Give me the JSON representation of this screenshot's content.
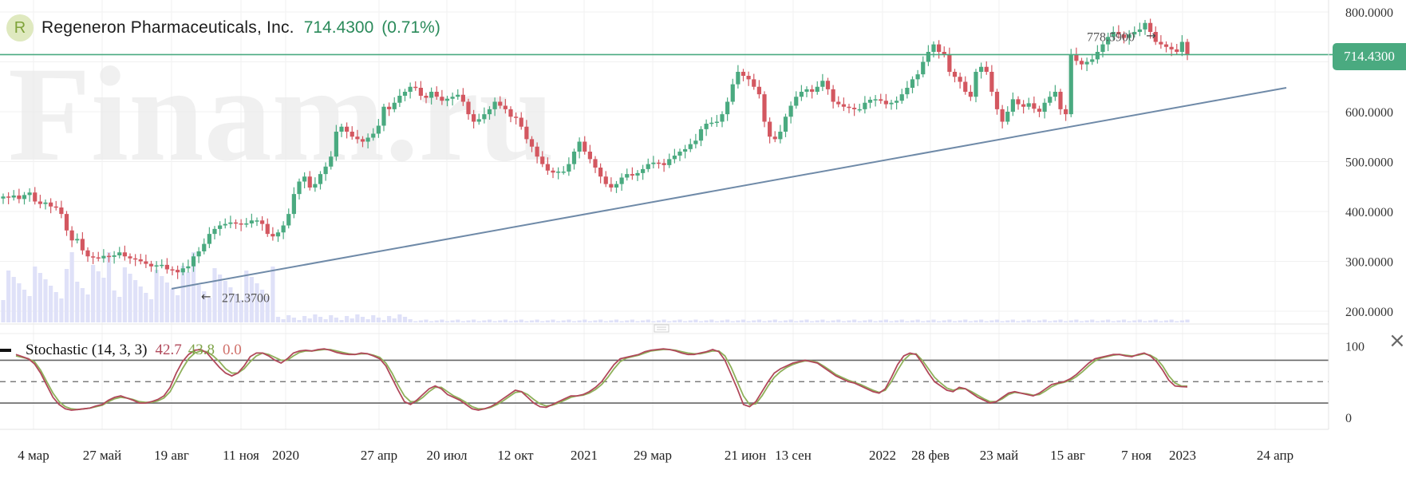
{
  "header": {
    "logo_letter": "R",
    "company": "Regeneron Pharmaceuticals, Inc.",
    "price": "714.4300",
    "change": "(0.71%)"
  },
  "watermark": "Finam.ru",
  "price_tag": "714.4300",
  "stochastic": {
    "name": "Stochastic (14, 3, 3)",
    "k": "42.7",
    "d": "43.8",
    "extra": "0.0"
  },
  "close_glyph": "×",
  "colors": {
    "up": "#4aaa80",
    "down": "#d35760",
    "trendline": "#6f8aa8",
    "price_line": "#4aaa80",
    "volume": "#dfe1f8",
    "stoch_k": "#b0485a",
    "stoch_d": "#8eb05a"
  },
  "chart_data": {
    "type": "candlestick",
    "price_axis": {
      "ticks": [
        "800.0000",
        "700.0000",
        "600.0000",
        "500.0000",
        "400.0000",
        "300.0000",
        "200.0000"
      ],
      "tick_values": [
        800,
        700,
        600,
        500,
        400,
        300,
        200
      ]
    },
    "stoch_axis": {
      "ticks": [
        "100",
        "0"
      ],
      "tick_values": [
        100,
        0
      ],
      "levels": [
        80,
        50,
        20
      ]
    },
    "x_labels": [
      "4 мар",
      "27 май",
      "19 авг",
      "11 ноя",
      "2020",
      "27 апр",
      "20 июл",
      "12 окт",
      "2021",
      "29 мар",
      "21 июн",
      "13 сен",
      "2022",
      "28 фев",
      "23 май",
      "15 авг",
      "7 ноя",
      "2023",
      "24 апр"
    ],
    "current_price": 714.43,
    "annotations": [
      {
        "text": "778.5900",
        "value": 778.59,
        "arrow": "→"
      },
      {
        "text": "271.3700",
        "value": 271.37,
        "arrow": "←"
      }
    ],
    "trendline": {
      "from": {
        "label": "19 авг",
        "value": 245
      },
      "to": {
        "label": "24 апр",
        "value": 648
      }
    },
    "closes": [
      430,
      428,
      432,
      425,
      433,
      438,
      420,
      415,
      418,
      410,
      408,
      395,
      362,
      342,
      345,
      322,
      310,
      308,
      306,
      311,
      309,
      312,
      318,
      310,
      306,
      304,
      300,
      295,
      290,
      292,
      293,
      284,
      283,
      278,
      286,
      290,
      310,
      320,
      335,
      355,
      365,
      372,
      375,
      378,
      376,
      374,
      376,
      382,
      382,
      375,
      355,
      350,
      358,
      372,
      395,
      435,
      460,
      470,
      448,
      455,
      475,
      490,
      510,
      560,
      570,
      560,
      550,
      545,
      540,
      548,
      556,
      572,
      610,
      605,
      618,
      632,
      640,
      650,
      648,
      632,
      628,
      640,
      630,
      622,
      626,
      630,
      634,
      620,
      595,
      580,
      585,
      595,
      605,
      620,
      612,
      605,
      590,
      588,
      570,
      545,
      530,
      510,
      495,
      482,
      478,
      480,
      480,
      495,
      520,
      540,
      520,
      505,
      488,
      470,
      455,
      448,
      455,
      468,
      475,
      472,
      477,
      485,
      495,
      498,
      497,
      493,
      505,
      512,
      520,
      525,
      535,
      542,
      565,
      576,
      578,
      580,
      595,
      620,
      655,
      680,
      672,
      665,
      650,
      635,
      580,
      550,
      545,
      560,
      590,
      612,
      630,
      640,
      645,
      640,
      650,
      662,
      645,
      620,
      615,
      610,
      608,
      605,
      605,
      618,
      624,
      625,
      622,
      615,
      618,
      622,
      635,
      648,
      665,
      675,
      700,
      720,
      735,
      720,
      715,
      680,
      670,
      660,
      640,
      630,
      680,
      690,
      680,
      640,
      605,
      580,
      600,
      625,
      615,
      610,
      617,
      606,
      600,
      618,
      630,
      640,
      605,
      595,
      715,
      702,
      695,
      700,
      705,
      720,
      735,
      750,
      760,
      755,
      748,
      755,
      760,
      765,
      778,
      760,
      740,
      735,
      730,
      725,
      720,
      740,
      714.43
    ],
    "stochastic_k": [
      88,
      85,
      82,
      75,
      62,
      45,
      28,
      18,
      12,
      10,
      11,
      12,
      13,
      16,
      18,
      24,
      28,
      30,
      27,
      24,
      20,
      20,
      22,
      25,
      30,
      42,
      62,
      78,
      88,
      94,
      95,
      90,
      80,
      70,
      62,
      58,
      62,
      72,
      85,
      90,
      90,
      86,
      80,
      76,
      82,
      90,
      93,
      94,
      93,
      95,
      96,
      94,
      91,
      89,
      88,
      88,
      90,
      89,
      86,
      82,
      72,
      55,
      38,
      22,
      18,
      24,
      32,
      40,
      44,
      40,
      32,
      28,
      24,
      18,
      12,
      10,
      12,
      15,
      20,
      26,
      32,
      38,
      36,
      28,
      20,
      15,
      14,
      18,
      22,
      26,
      30,
      30,
      32,
      36,
      42,
      50,
      62,
      74,
      82,
      84,
      86,
      88,
      92,
      94,
      95,
      96,
      95,
      93,
      90,
      88,
      88,
      90,
      92,
      95,
      92,
      80,
      60,
      40,
      18,
      15,
      22,
      36,
      50,
      62,
      68,
      72,
      76,
      78,
      80,
      78,
      76,
      70,
      64,
      58,
      54,
      50,
      48,
      44,
      40,
      36,
      34,
      40,
      56,
      74,
      86,
      90,
      88,
      76,
      62,
      50,
      44,
      38,
      36,
      42,
      40,
      34,
      28,
      24,
      20,
      22,
      28,
      34,
      36,
      34,
      32,
      30,
      34,
      40,
      46,
      48,
      50,
      54,
      60,
      68,
      76,
      82,
      84,
      86,
      88,
      88,
      86,
      85,
      88,
      90,
      86,
      78,
      66,
      52,
      44,
      43,
      42.7
    ],
    "stochastic_d": [
      86,
      84,
      82,
      78,
      66,
      50,
      34,
      22,
      15,
      12,
      11,
      12,
      13,
      15,
      17,
      22,
      26,
      28,
      27,
      25,
      22,
      21,
      21,
      23,
      27,
      36,
      52,
      68,
      82,
      90,
      93,
      92,
      86,
      78,
      68,
      62,
      62,
      68,
      78,
      86,
      90,
      88,
      84,
      80,
      80,
      86,
      91,
      93,
      93,
      94,
      95,
      95,
      93,
      91,
      89,
      88,
      89,
      89,
      87,
      84,
      76,
      62,
      45,
      30,
      22,
      22,
      28,
      36,
      42,
      42,
      36,
      30,
      26,
      21,
      15,
      12,
      12,
      14,
      18,
      23,
      29,
      35,
      36,
      32,
      25,
      19,
      16,
      17,
      20,
      24,
      28,
      30,
      31,
      34,
      39,
      46,
      56,
      68,
      78,
      83,
      85,
      87,
      90,
      93,
      94,
      95,
      95,
      94,
      92,
      90,
      89,
      89,
      91,
      93,
      93,
      86,
      70,
      50,
      30,
      18,
      19,
      30,
      44,
      56,
      64,
      70,
      74,
      77,
      79,
      79,
      77,
      72,
      66,
      60,
      56,
      52,
      49,
      46,
      42,
      38,
      35,
      38,
      50,
      66,
      80,
      88,
      89,
      80,
      68,
      56,
      48,
      41,
      38,
      40,
      40,
      36,
      31,
      26,
      22,
      22,
      26,
      32,
      35,
      34,
      33,
      31,
      32,
      37,
      43,
      47,
      49,
      52,
      57,
      64,
      72,
      79,
      83,
      85,
      87,
      88,
      87,
      86,
      87,
      89,
      87,
      82,
      72,
      58,
      48,
      44,
      43.8
    ]
  }
}
